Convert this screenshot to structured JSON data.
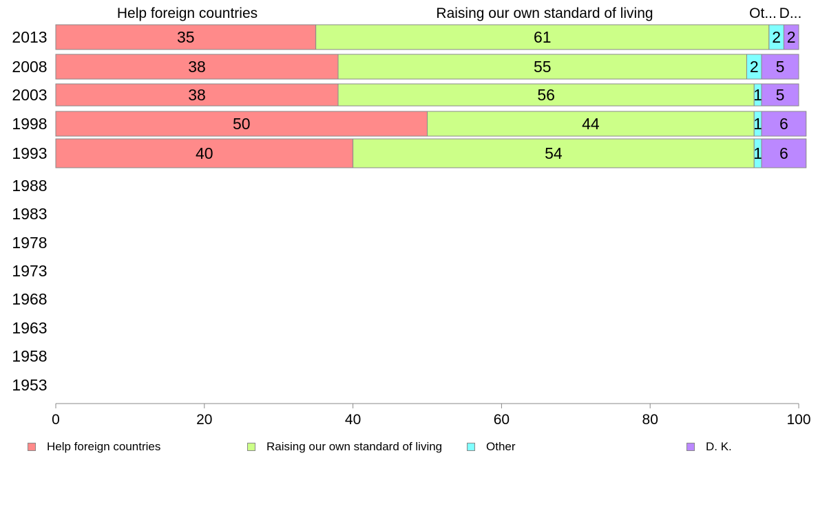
{
  "chart_data": {
    "type": "bar",
    "orientation": "horizontal",
    "stacked": true,
    "title": "",
    "xlabel": "",
    "ylabel": "",
    "xlim": [
      0,
      100
    ],
    "x_ticks": [
      0,
      20,
      40,
      60,
      80,
      100
    ],
    "grid": false,
    "legend_position": "bottom",
    "categories": [
      "2013",
      "2008",
      "2003",
      "1998",
      "1993",
      "1988",
      "1983",
      "1978",
      "1973",
      "1968",
      "1963",
      "1958",
      "1953"
    ],
    "series": [
      {
        "name": "Help foreign countries",
        "color": "#ff8a8a",
        "values": [
          35,
          38,
          38,
          50,
          40,
          null,
          null,
          null,
          null,
          null,
          null,
          null,
          null
        ]
      },
      {
        "name": "Raising our own standard of living",
        "color": "#ccff88",
        "values": [
          61,
          55,
          56,
          44,
          54,
          null,
          null,
          null,
          null,
          null,
          null,
          null,
          null
        ]
      },
      {
        "name": "Other",
        "color": "#80ffff",
        "values": [
          2,
          2,
          1,
          1,
          1,
          null,
          null,
          null,
          null,
          null,
          null,
          null,
          null
        ]
      },
      {
        "name": "D. K.",
        "color": "#bb88ff",
        "values": [
          2,
          5,
          5,
          6,
          6,
          null,
          null,
          null,
          null,
          null,
          null,
          null,
          null
        ]
      }
    ],
    "top_labels": [
      "Help foreign countries",
      "Raising our own standard of living",
      "Ot...",
      "D..."
    ]
  }
}
